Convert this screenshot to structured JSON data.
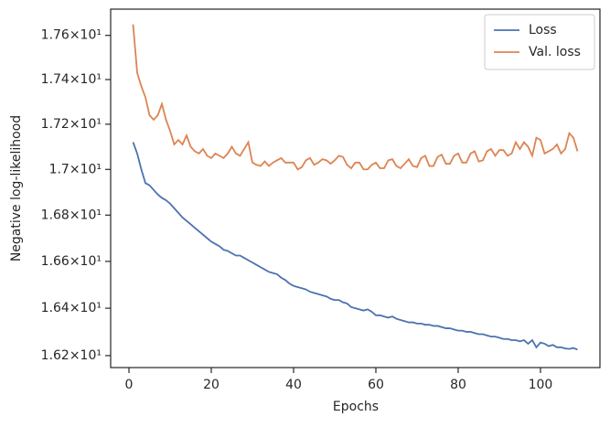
{
  "chart_data": {
    "type": "line",
    "xlabel": "Epochs",
    "ylabel": "Negative log-likelihood",
    "x": [
      1,
      2,
      3,
      4,
      5,
      6,
      7,
      8,
      9,
      10,
      11,
      12,
      13,
      14,
      15,
      16,
      17,
      18,
      19,
      20,
      21,
      22,
      23,
      24,
      25,
      26,
      27,
      28,
      29,
      30,
      31,
      32,
      33,
      34,
      35,
      36,
      37,
      38,
      39,
      40,
      41,
      42,
      43,
      44,
      45,
      46,
      47,
      48,
      49,
      50,
      51,
      52,
      53,
      54,
      55,
      56,
      57,
      58,
      59,
      60,
      61,
      62,
      63,
      64,
      65,
      66,
      67,
      68,
      69,
      70,
      71,
      72,
      73,
      74,
      75,
      76,
      77,
      78,
      79,
      80,
      81,
      82,
      83,
      84,
      85,
      86,
      87,
      88,
      89,
      90,
      91,
      92,
      93,
      94,
      95,
      96,
      97,
      98,
      99,
      100,
      101,
      102,
      103,
      104,
      105,
      106,
      107,
      108,
      109
    ],
    "series": [
      {
        "name": "Loss",
        "color": "#4c72b0",
        "values": [
          17.12,
          17.07,
          17.0,
          16.94,
          16.93,
          16.91,
          16.89,
          16.875,
          16.865,
          16.85,
          16.83,
          16.81,
          16.79,
          16.775,
          16.76,
          16.745,
          16.73,
          16.715,
          16.7,
          16.685,
          16.675,
          16.665,
          16.65,
          16.645,
          16.635,
          16.625,
          16.625,
          16.615,
          16.605,
          16.595,
          16.585,
          16.575,
          16.565,
          16.555,
          16.55,
          16.545,
          16.53,
          16.52,
          16.505,
          16.495,
          16.49,
          16.485,
          16.48,
          16.47,
          16.465,
          16.46,
          16.455,
          16.45,
          16.44,
          16.435,
          16.435,
          16.425,
          16.42,
          16.405,
          16.4,
          16.395,
          16.39,
          16.395,
          16.385,
          16.37,
          16.37,
          16.365,
          16.36,
          16.365,
          16.355,
          16.35,
          16.345,
          16.34,
          16.34,
          16.335,
          16.335,
          16.33,
          16.33,
          16.325,
          16.325,
          16.32,
          16.315,
          16.315,
          16.31,
          16.305,
          16.305,
          16.3,
          16.3,
          16.295,
          16.29,
          16.29,
          16.285,
          16.28,
          16.28,
          16.275,
          16.27,
          16.27,
          16.265,
          16.265,
          16.26,
          16.265,
          16.25,
          16.265,
          16.235,
          16.255,
          16.25,
          16.24,
          16.245,
          16.235,
          16.235,
          16.23,
          16.228,
          16.232,
          16.225
        ]
      },
      {
        "name": "Val. loss",
        "color": "#dd8452",
        "values": [
          17.65,
          17.43,
          17.37,
          17.32,
          17.24,
          17.22,
          17.24,
          17.29,
          17.22,
          17.17,
          17.11,
          17.13,
          17.11,
          17.15,
          17.1,
          17.08,
          17.07,
          17.09,
          17.06,
          17.05,
          17.07,
          17.06,
          17.05,
          17.07,
          17.1,
          17.07,
          17.06,
          17.09,
          17.12,
          17.03,
          17.02,
          17.015,
          17.035,
          17.015,
          17.03,
          17.04,
          17.05,
          17.03,
          17.03,
          17.03,
          17.0,
          17.01,
          17.04,
          17.05,
          17.02,
          17.03,
          17.045,
          17.04,
          17.025,
          17.04,
          17.06,
          17.055,
          17.02,
          17.005,
          17.03,
          17.03,
          17.0,
          17.0,
          17.02,
          17.03,
          17.005,
          17.005,
          17.04,
          17.045,
          17.015,
          17.005,
          17.025,
          17.045,
          17.015,
          17.01,
          17.05,
          17.06,
          17.015,
          17.015,
          17.055,
          17.065,
          17.025,
          17.025,
          17.06,
          17.07,
          17.03,
          17.03,
          17.07,
          17.08,
          17.035,
          17.04,
          17.08,
          17.09,
          17.06,
          17.085,
          17.085,
          17.06,
          17.07,
          17.12,
          17.09,
          17.12,
          17.1,
          17.06,
          17.14,
          17.13,
          17.07,
          17.08,
          17.09,
          17.11,
          17.07,
          17.09,
          17.16,
          17.14,
          17.08
        ]
      }
    ],
    "xlim": [
      -4.45,
      114.45
    ],
    "xticks": [
      0,
      20,
      40,
      60,
      80,
      100
    ],
    "ylim": [
      16.15,
      17.72
    ],
    "yscale": "log",
    "yticks": [
      {
        "value": 16.2,
        "label": "1.62×10¹"
      },
      {
        "value": 16.4,
        "label": "1.64×10¹"
      },
      {
        "value": 16.6,
        "label": "1.66×10¹"
      },
      {
        "value": 16.8,
        "label": "1.68×10¹"
      },
      {
        "value": 17.0,
        "label": "1.7×10¹"
      },
      {
        "value": 17.2,
        "label": "1.72×10¹"
      },
      {
        "value": 17.4,
        "label": "1.74×10¹"
      },
      {
        "value": 17.6,
        "label": "1.76×10¹"
      }
    ],
    "grid": false,
    "legend": "upper right"
  }
}
